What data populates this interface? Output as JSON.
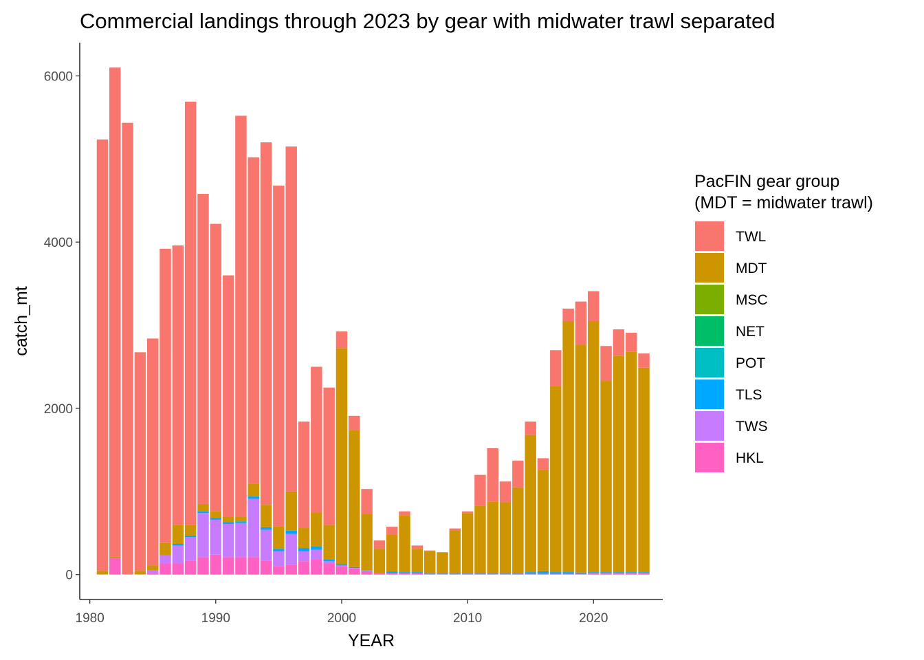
{
  "chart_data": {
    "type": "bar",
    "stacked": true,
    "title": "Commercial landings through 2023 by gear with midwater trawl separated",
    "xlabel": "YEAR",
    "ylabel": "catch_mt",
    "xlim": [
      1979.2,
      2025.5
    ],
    "ylim": [
      -300,
      6400
    ],
    "x_ticks": [
      1980,
      1990,
      2000,
      2010,
      2020
    ],
    "y_ticks": [
      0,
      2000,
      4000,
      6000
    ],
    "grid": false,
    "legend_position": "right",
    "legend_title": [
      "PacFIN gear group",
      "(MDT = midwater trawl)"
    ],
    "x": [
      1981,
      1982,
      1983,
      1984,
      1985,
      1986,
      1987,
      1988,
      1989,
      1990,
      1991,
      1992,
      1993,
      1994,
      1995,
      1996,
      1997,
      1998,
      1999,
      2000,
      2001,
      2002,
      2003,
      2004,
      2005,
      2006,
      2007,
      2008,
      2009,
      2010,
      2011,
      2012,
      2013,
      2014,
      2015,
      2016,
      2017,
      2018,
      2019,
      2020,
      2021,
      2022,
      2023,
      2024
    ],
    "series": [
      {
        "name": "HKL",
        "color": "#FF61C3",
        "values": [
          5,
          200,
          5,
          5,
          20,
          130,
          130,
          170,
          210,
          240,
          210,
          210,
          210,
          170,
          100,
          120,
          160,
          180,
          130,
          100,
          70,
          40,
          15,
          15,
          15,
          15,
          10,
          10,
          10,
          10,
          10,
          10,
          10,
          10,
          10,
          10,
          10,
          10,
          10,
          20,
          20,
          20,
          20,
          20
        ]
      },
      {
        "name": "TWS",
        "color": "#C77CFF",
        "values": [
          0,
          0,
          0,
          0,
          30,
          100,
          220,
          280,
          530,
          420,
          400,
          410,
          700,
          370,
          180,
          370,
          120,
          120,
          30,
          10,
          10,
          5,
          0,
          0,
          0,
          0,
          0,
          0,
          0,
          0,
          0,
          0,
          0,
          0,
          0,
          0,
          0,
          0,
          0,
          0,
          0,
          0,
          0,
          0
        ]
      },
      {
        "name": "TLS",
        "color": "#00A9FF",
        "values": [
          0,
          0,
          0,
          0,
          0,
          0,
          20,
          20,
          20,
          20,
          20,
          20,
          30,
          30,
          30,
          40,
          40,
          40,
          20,
          15,
          10,
          5,
          5,
          20,
          15,
          15,
          5,
          5,
          5,
          10,
          10,
          10,
          10,
          10,
          20,
          30,
          20,
          20,
          15,
          10,
          10,
          10,
          10,
          10
        ]
      },
      {
        "name": "POT",
        "color": "#00BFC4",
        "values": [
          0,
          0,
          0,
          0,
          0,
          0,
          0,
          0,
          0,
          0,
          0,
          0,
          0,
          0,
          0,
          0,
          0,
          0,
          0,
          0,
          0,
          0,
          0,
          0,
          0,
          0,
          0,
          0,
          0,
          0,
          0,
          0,
          0,
          0,
          0,
          0,
          0,
          0,
          0,
          0,
          0,
          0,
          0,
          0
        ]
      },
      {
        "name": "NET",
        "color": "#00BE67",
        "values": [
          0,
          0,
          0,
          0,
          0,
          0,
          0,
          0,
          0,
          0,
          0,
          0,
          0,
          0,
          0,
          0,
          0,
          0,
          0,
          0,
          0,
          0,
          0,
          0,
          0,
          0,
          0,
          0,
          0,
          0,
          0,
          0,
          0,
          0,
          0,
          0,
          0,
          0,
          0,
          0,
          0,
          0,
          0,
          0
        ]
      },
      {
        "name": "MSC",
        "color": "#7CAE00",
        "values": [
          0,
          0,
          0,
          0,
          0,
          0,
          0,
          0,
          0,
          0,
          0,
          0,
          0,
          0,
          0,
          0,
          0,
          0,
          0,
          0,
          0,
          0,
          0,
          0,
          0,
          0,
          0,
          0,
          0,
          0,
          0,
          0,
          0,
          0,
          0,
          0,
          0,
          0,
          0,
          0,
          0,
          0,
          0,
          0
        ]
      },
      {
        "name": "MDT",
        "color": "#CD9600",
        "values": [
          40,
          20,
          0,
          40,
          60,
          150,
          230,
          130,
          90,
          80,
          70,
          60,
          150,
          270,
          270,
          470,
          240,
          410,
          420,
          2600,
          1650,
          680,
          290,
          450,
          680,
          280,
          270,
          250,
          520,
          720,
          810,
          860,
          850,
          1030,
          1650,
          1220,
          2240,
          3020,
          2740,
          3020,
          2300,
          2600,
          2650,
          2460
        ]
      },
      {
        "name": "TWL",
        "color": "#F8766D",
        "values": [
          5190,
          5880,
          5430,
          2630,
          2730,
          3540,
          3360,
          5090,
          3730,
          3460,
          2900,
          4820,
          3930,
          4360,
          4100,
          4150,
          1280,
          1750,
          1650,
          200,
          170,
          300,
          100,
          90,
          50,
          40,
          5,
          5,
          20,
          20,
          370,
          640,
          250,
          320,
          160,
          140,
          430,
          150,
          520,
          360,
          420,
          320,
          230,
          170
        ]
      }
    ]
  }
}
